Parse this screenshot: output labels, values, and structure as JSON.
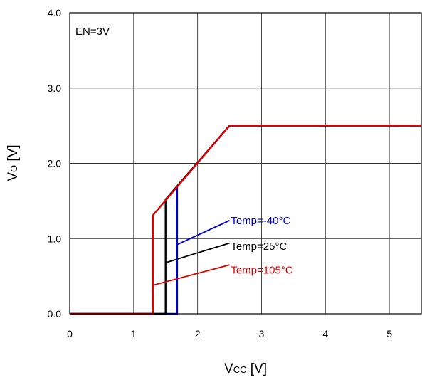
{
  "chart_data": {
    "type": "line",
    "xlabel": {
      "main": "V",
      "sub": "CC",
      "unit": " [V]"
    },
    "ylabel": {
      "main": "V",
      "sub": "O",
      "unit": " [V]"
    },
    "xlim": [
      0,
      5.5
    ],
    "ylim": [
      0,
      4.0
    ],
    "x_ticks": [
      0,
      1,
      2,
      3,
      4,
      5
    ],
    "x_tick_labels": [
      "0",
      "1",
      "2",
      "3",
      "4",
      "5"
    ],
    "y_ticks": [
      0,
      1,
      2,
      3,
      4
    ],
    "y_tick_labels": [
      "0.0",
      "1.0",
      "2.0",
      "3.0",
      "4.0"
    ],
    "grid": true,
    "annotation_condition": "EN=3V",
    "series": [
      {
        "name": "Temp=-40°C",
        "color": "#0000cc",
        "points": [
          [
            0,
            0
          ],
          [
            1.68,
            0
          ],
          [
            1.68,
            1.69
          ],
          [
            2.5,
            2.5
          ],
          [
            5.5,
            2.5
          ]
        ],
        "label_arrow_from": [
          1.68,
          0.92
        ],
        "label_arrow_to": [
          2.5,
          1.24
        ],
        "label_position": [
          2.52,
          1.24
        ]
      },
      {
        "name": "Temp=25°C",
        "color": "#000000",
        "points": [
          [
            0,
            0
          ],
          [
            1.5,
            0
          ],
          [
            1.5,
            1.52
          ],
          [
            2.5,
            2.5
          ],
          [
            5.5,
            2.5
          ]
        ],
        "label_arrow_from": [
          1.5,
          0.68
        ],
        "label_arrow_to": [
          2.5,
          0.94
        ],
        "label_position": [
          2.52,
          0.9
        ]
      },
      {
        "name": "Temp=105°C",
        "color": "#e00000",
        "points": [
          [
            0,
            0
          ],
          [
            1.3,
            0
          ],
          [
            1.3,
            1.31
          ],
          [
            2.5,
            2.5
          ],
          [
            5.5,
            2.5
          ]
        ],
        "label_arrow_from": [
          1.3,
          0.38
        ],
        "label_arrow_to": [
          2.5,
          0.65
        ],
        "label_position": [
          2.52,
          0.58
        ]
      }
    ]
  }
}
